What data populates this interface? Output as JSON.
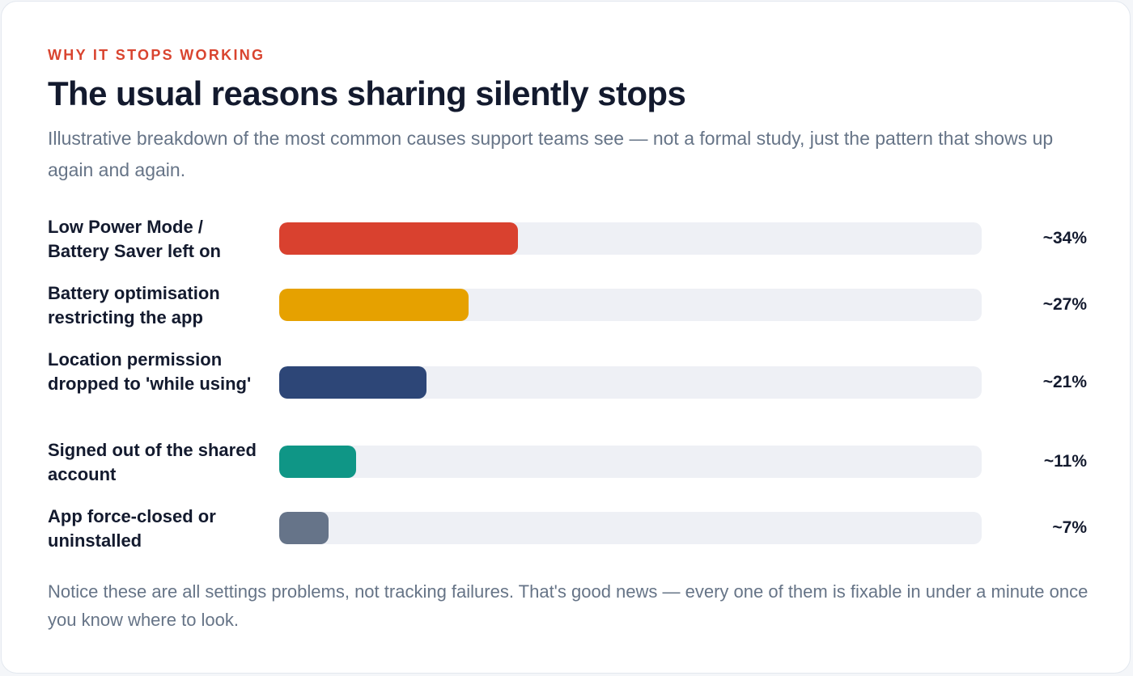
{
  "header": {
    "eyebrow": "WHY IT STOPS WORKING",
    "title": "The usual reasons sharing silently stops",
    "subtitle": "Illustrative breakdown of the most common causes support teams see — not a formal study, just the pattern that shows up again and again."
  },
  "chart_data": {
    "type": "bar",
    "orientation": "horizontal",
    "categories": [
      "Low Power Mode / Battery Saver left on",
      "Battery optimisation restricting the app",
      "Location permission dropped to 'while using'",
      "Signed out of the shared account",
      "App force-closed or uninstalled"
    ],
    "values": [
      34,
      27,
      21,
      11,
      7
    ],
    "value_labels": [
      "~34%",
      "~27%",
      "~21%",
      "~11%",
      "~7%"
    ],
    "colors": [
      "#d9412f",
      "#e6a100",
      "#2d4677",
      "#0f9686",
      "#667489"
    ],
    "xlim": [
      0,
      100
    ],
    "grid": false,
    "legend": "none"
  },
  "footnote": "Notice these are all settings problems, not tracking failures. That's good news — every one of them is fixable in under a minute once you know where to look."
}
